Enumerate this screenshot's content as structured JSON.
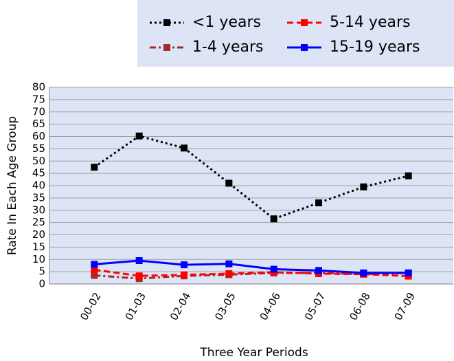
{
  "chart_data": {
    "type": "line",
    "x_label": "Three Year Periods",
    "y_label": "Rate In Each Age Group",
    "categories": [
      "00-02",
      "01-03",
      "02-04",
      "03-05",
      "04-06",
      "05-07",
      "06-08",
      "07-09"
    ],
    "series": [
      {
        "name": "<1 years",
        "color": "#000000",
        "line_style": "dotted",
        "values": [
          47.5,
          60.2,
          55.3,
          41,
          26.5,
          33,
          39.5,
          44
        ]
      },
      {
        "name": "1-4 years",
        "color": "#a52a2a",
        "line_style": "dash-dot",
        "values": [
          3.5,
          2.2,
          3.3,
          3.8,
          4.5,
          4.5,
          4,
          4.5
        ]
      },
      {
        "name": "5-14 years",
        "color": "#ff0000",
        "line_style": "dashed",
        "values": [
          5.8,
          3.3,
          3.7,
          4.2,
          4.8,
          4.2,
          4,
          3.2
        ]
      },
      {
        "name": "15-19 years",
        "color": "#0000ff",
        "line_style": "solid",
        "values": [
          8,
          9.5,
          7.8,
          8.2,
          6,
          5.5,
          4.5,
          4.5
        ]
      }
    ],
    "ylim": [
      0,
      80
    ],
    "yticks": [
      0,
      5,
      10,
      15,
      20,
      25,
      30,
      35,
      40,
      45,
      50,
      55,
      60,
      65,
      70,
      75,
      80
    ],
    "grid": true
  }
}
